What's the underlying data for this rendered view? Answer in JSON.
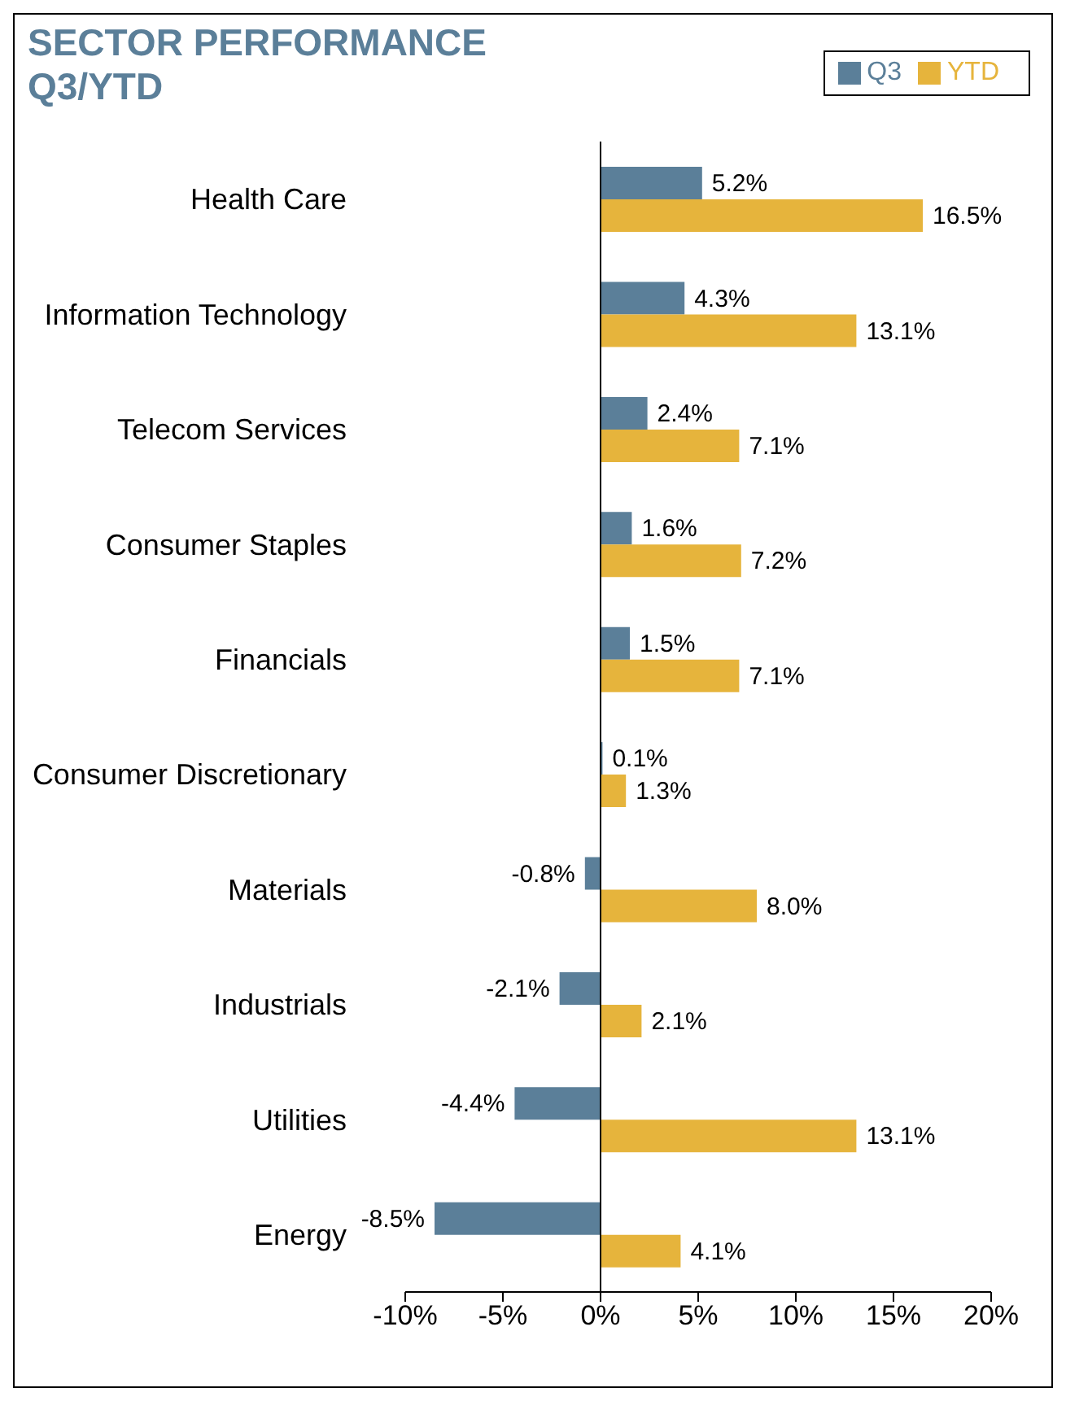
{
  "chart_data": {
    "type": "bar",
    "orientation": "horizontal",
    "title": "SECTOR PERFORMANCE\nQ3/YTD",
    "categories": [
      "Health Care",
      "Information Technology",
      "Telecom Services",
      "Consumer Staples",
      "Financials",
      "Consumer Discretionary",
      "Materials",
      "Industrials",
      "Utilities",
      "Energy"
    ],
    "series": [
      {
        "name": "Q3",
        "color": "#5b7f99",
        "values": [
          5.2,
          4.3,
          2.4,
          1.6,
          1.5,
          0.1,
          -0.8,
          -2.1,
          -4.4,
          -8.5
        ],
        "value_labels": [
          "5.2%",
          "4.3%",
          "2.4%",
          "1.6%",
          "1.5%",
          "0.1%",
          "-0.8%",
          "-2.1%",
          "-4.4%",
          "-8.5%"
        ]
      },
      {
        "name": "YTD",
        "color": "#e6b43c",
        "values": [
          16.5,
          13.1,
          7.1,
          7.2,
          7.1,
          1.3,
          8.0,
          2.1,
          13.1,
          4.1
        ],
        "value_labels": [
          "16.5%",
          "13.1%",
          "7.1%",
          "7.2%",
          "7.1%",
          "1.3%",
          "8.0%",
          "2.1%",
          "13.1%",
          "4.1%"
        ]
      }
    ],
    "xlim": [
      -10,
      20
    ],
    "xticks": [
      {
        "value": -10,
        "label": "-10%"
      },
      {
        "value": -5,
        "label": "-5%"
      },
      {
        "value": 0,
        "label": "0%"
      },
      {
        "value": 5,
        "label": "5%"
      },
      {
        "value": 10,
        "label": "10%"
      },
      {
        "value": 15,
        "label": "15%"
      },
      {
        "value": 20,
        "label": "20%"
      }
    ],
    "ref_lines": [
      {
        "axis": "x",
        "value": 0,
        "color": "#000000"
      }
    ],
    "legend": "top right"
  }
}
